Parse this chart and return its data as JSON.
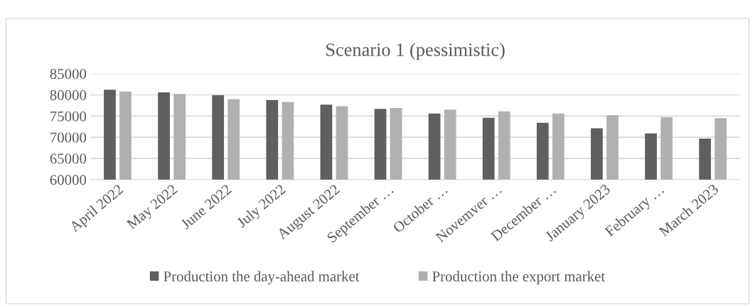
{
  "chart_data": {
    "type": "bar",
    "title": "Scenario 1 (pessimistic)",
    "categories": [
      "April 2022",
      "May 2022",
      "June 2022",
      "July 2022",
      "August 2022",
      "September …",
      "October …",
      "Novemver …",
      "December …",
      "January 2023",
      "February …",
      "March 2023"
    ],
    "series": [
      {
        "name": "Production the day-ahead market",
        "color": "#5f5f5f",
        "values": [
          81200,
          80600,
          79900,
          78800,
          77700,
          76700,
          75600,
          74600,
          73400,
          72100,
          70900,
          69700
        ]
      },
      {
        "name": "Production the export market",
        "color": "#b0b0b0",
        "values": [
          80800,
          80200,
          79000,
          78300,
          77300,
          76900,
          76500,
          76100,
          75600,
          75200,
          74700,
          74500
        ]
      }
    ],
    "ylim": [
      60000,
      85000
    ],
    "yticks": [
      60000,
      65000,
      70000,
      75000,
      80000,
      85000
    ],
    "grid": "y",
    "legend": "bottom"
  }
}
